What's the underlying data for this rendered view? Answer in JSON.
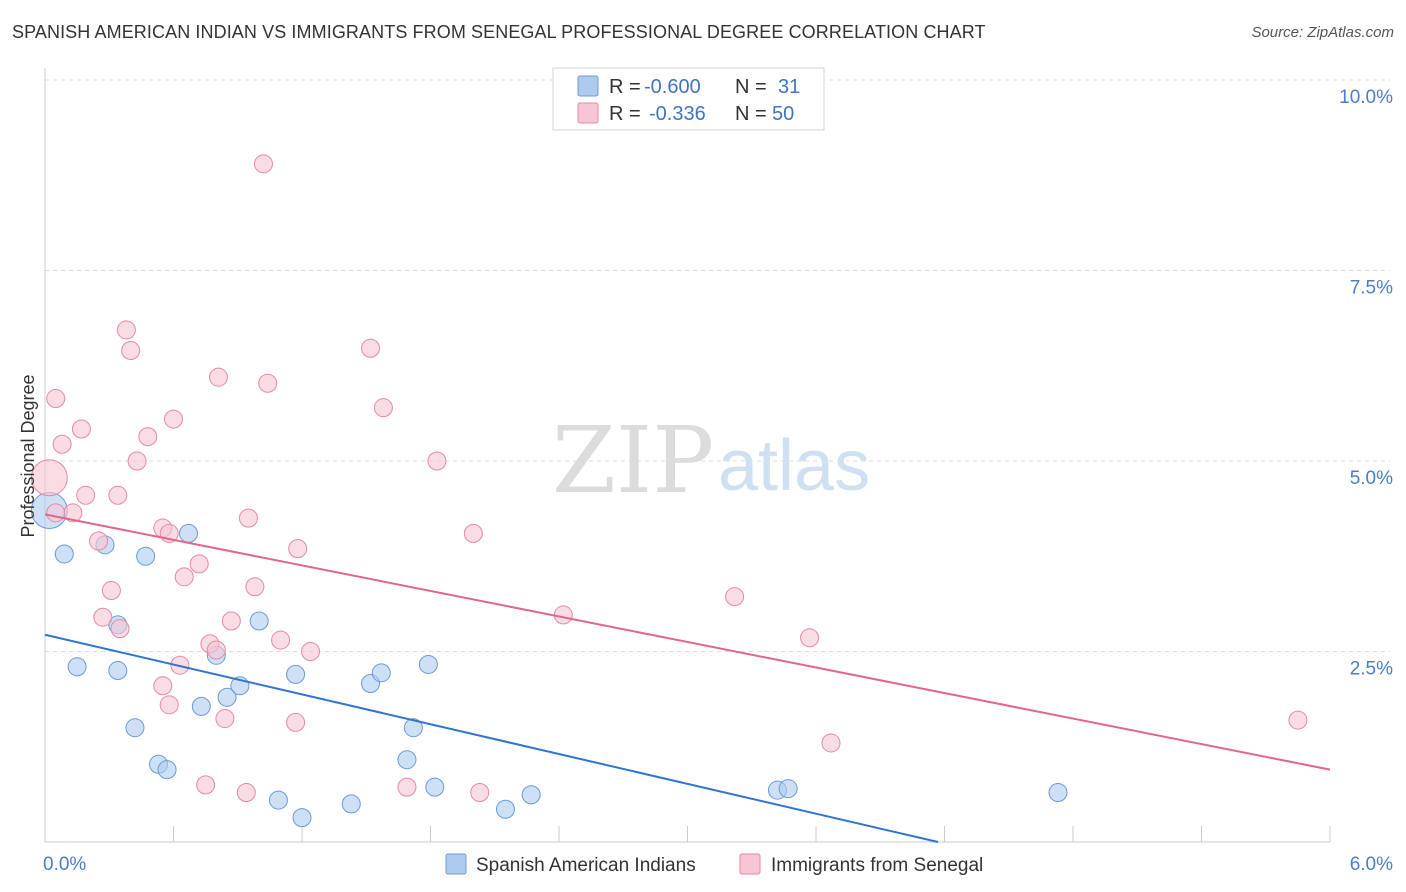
{
  "header": {
    "title": "SPANISH AMERICAN INDIAN VS IMMIGRANTS FROM SENEGAL PROFESSIONAL DEGREE CORRELATION CHART",
    "source": "Source: ZipAtlas.com"
  },
  "watermark": {
    "zip": "ZIP",
    "atlas": "atlas"
  },
  "legend_box": {
    "row1": {
      "r_label": "R =",
      "r_value": "-0.600",
      "n_label": "N =",
      "n_value": "31"
    },
    "row2": {
      "r_label": "R =",
      "r_value": "-0.336",
      "n_label": "N =",
      "n_value": "50"
    }
  },
  "colors": {
    "blue_fill": "#aecbee",
    "blue_stroke": "#6a9bd8",
    "blue_line": "#2f74d0",
    "pink_fill": "#f7c5d3",
    "pink_stroke": "#e58aa6",
    "pink_line": "#e0668e",
    "tick_label": "#4a7ec9",
    "grid": "#dddddd"
  },
  "chart_data": {
    "type": "scatter",
    "title": "SPANISH AMERICAN INDIAN VS IMMIGRANTS FROM SENEGAL PROFESSIONAL DEGREE CORRELATION CHART",
    "xlabel": "",
    "ylabel": "Professional Degree",
    "xlim": [
      0,
      6
    ],
    "ylim": [
      0,
      10
    ],
    "x_tick_labels": [
      {
        "value": 0,
        "label": "0.0%"
      },
      {
        "value": 6,
        "label": "6.0%"
      }
    ],
    "y_tick_labels": [
      {
        "value": 2.5,
        "label": "2.5%"
      },
      {
        "value": 5.0,
        "label": "5.0%"
      },
      {
        "value": 7.5,
        "label": "7.5%"
      },
      {
        "value": 10.0,
        "label": "10.0%"
      }
    ],
    "grid": true,
    "legend": "bottom-center",
    "series": [
      {
        "name": "Spanish American Indians",
        "r": -0.6,
        "n": 31,
        "trend": {
          "x": [
            0,
            4.17
          ],
          "y": [
            2.72,
            0
          ]
        },
        "points": [
          {
            "x": 0.02,
            "y": 4.35,
            "big": true
          },
          {
            "x": 0.09,
            "y": 3.78
          },
          {
            "x": 0.28,
            "y": 3.9
          },
          {
            "x": 0.47,
            "y": 3.75
          },
          {
            "x": 0.67,
            "y": 4.05
          },
          {
            "x": 0.34,
            "y": 2.85
          },
          {
            "x": 0.15,
            "y": 2.3
          },
          {
            "x": 0.34,
            "y": 2.25
          },
          {
            "x": 0.8,
            "y": 2.45
          },
          {
            "x": 1.0,
            "y": 2.9
          },
          {
            "x": 0.42,
            "y": 1.5
          },
          {
            "x": 0.73,
            "y": 1.78
          },
          {
            "x": 0.85,
            "y": 1.9
          },
          {
            "x": 0.91,
            "y": 2.05
          },
          {
            "x": 1.17,
            "y": 2.2
          },
          {
            "x": 1.52,
            "y": 2.08
          },
          {
            "x": 1.57,
            "y": 2.22
          },
          {
            "x": 1.79,
            "y": 2.33
          },
          {
            "x": 1.72,
            "y": 1.5
          },
          {
            "x": 0.53,
            "y": 1.02
          },
          {
            "x": 0.57,
            "y": 0.95
          },
          {
            "x": 1.69,
            "y": 1.08
          },
          {
            "x": 1.82,
            "y": 0.72
          },
          {
            "x": 1.09,
            "y": 0.55
          },
          {
            "x": 1.2,
            "y": 0.32
          },
          {
            "x": 1.43,
            "y": 0.5
          },
          {
            "x": 2.15,
            "y": 0.43
          },
          {
            "x": 2.27,
            "y": 0.62
          },
          {
            "x": 3.42,
            "y": 0.68
          },
          {
            "x": 3.47,
            "y": 0.7
          },
          {
            "x": 4.73,
            "y": 0.65
          }
        ]
      },
      {
        "name": "Immigrants from Senegal",
        "r": -0.336,
        "n": 50,
        "trend": {
          "x": [
            0,
            6
          ],
          "y": [
            4.3,
            0.95
          ]
        },
        "points": [
          {
            "x": 0.02,
            "y": 4.78,
            "big": true
          },
          {
            "x": 0.05,
            "y": 5.82
          },
          {
            "x": 0.08,
            "y": 5.22
          },
          {
            "x": 0.17,
            "y": 5.42
          },
          {
            "x": 0.19,
            "y": 4.55
          },
          {
            "x": 0.13,
            "y": 4.32
          },
          {
            "x": 0.34,
            "y": 4.55
          },
          {
            "x": 0.25,
            "y": 3.95
          },
          {
            "x": 0.31,
            "y": 3.3
          },
          {
            "x": 0.27,
            "y": 2.95
          },
          {
            "x": 0.35,
            "y": 2.8
          },
          {
            "x": 0.38,
            "y": 6.72
          },
          {
            "x": 0.4,
            "y": 6.45
          },
          {
            "x": 0.48,
            "y": 5.32
          },
          {
            "x": 0.43,
            "y": 5.0
          },
          {
            "x": 0.6,
            "y": 5.55
          },
          {
            "x": 0.55,
            "y": 4.12
          },
          {
            "x": 0.58,
            "y": 4.05
          },
          {
            "x": 0.65,
            "y": 3.48
          },
          {
            "x": 0.72,
            "y": 3.65
          },
          {
            "x": 0.81,
            "y": 6.1
          },
          {
            "x": 0.95,
            "y": 4.25
          },
          {
            "x": 0.98,
            "y": 3.35
          },
          {
            "x": 0.87,
            "y": 2.9
          },
          {
            "x": 0.77,
            "y": 2.6
          },
          {
            "x": 0.8,
            "y": 2.52
          },
          {
            "x": 0.63,
            "y": 2.32
          },
          {
            "x": 0.55,
            "y": 2.05
          },
          {
            "x": 0.58,
            "y": 1.8
          },
          {
            "x": 0.84,
            "y": 1.62
          },
          {
            "x": 1.04,
            "y": 6.02
          },
          {
            "x": 1.02,
            "y": 8.9
          },
          {
            "x": 1.1,
            "y": 2.65
          },
          {
            "x": 1.18,
            "y": 3.85
          },
          {
            "x": 1.24,
            "y": 2.5
          },
          {
            "x": 1.17,
            "y": 1.57
          },
          {
            "x": 1.52,
            "y": 6.48
          },
          {
            "x": 1.58,
            "y": 5.7
          },
          {
            "x": 1.83,
            "y": 5.0
          },
          {
            "x": 2.0,
            "y": 4.05
          },
          {
            "x": 2.42,
            "y": 2.98
          },
          {
            "x": 3.22,
            "y": 3.22
          },
          {
            "x": 3.57,
            "y": 2.68
          },
          {
            "x": 3.67,
            "y": 1.3
          },
          {
            "x": 5.85,
            "y": 1.6
          },
          {
            "x": 0.75,
            "y": 0.75
          },
          {
            "x": 0.94,
            "y": 0.65
          },
          {
            "x": 1.69,
            "y": 0.72
          },
          {
            "x": 2.03,
            "y": 0.65
          },
          {
            "x": 0.05,
            "y": 4.32
          }
        ]
      }
    ]
  },
  "bottom_legend": [
    {
      "label": "Spanish American Indians",
      "color": "blue"
    },
    {
      "label": "Immigrants from Senegal",
      "color": "pink"
    }
  ]
}
